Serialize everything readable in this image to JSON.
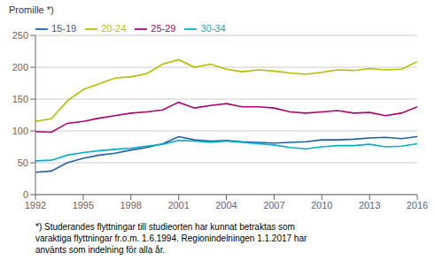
{
  "chart_data": {
    "type": "line",
    "ylabel": "Promille *)",
    "x": [
      1992,
      1993,
      1994,
      1995,
      1996,
      1997,
      1998,
      1999,
      2000,
      2001,
      2002,
      2003,
      2004,
      2005,
      2006,
      2007,
      2008,
      2009,
      2010,
      2011,
      2012,
      2013,
      2014,
      2015,
      2016
    ],
    "series": [
      {
        "name": "15-19",
        "color": "#1f5fa6",
        "values": [
          35,
          37,
          50,
          57,
          62,
          65,
          70,
          74,
          80,
          91,
          86,
          84,
          85,
          83,
          82,
          81,
          82,
          83,
          86,
          86,
          87,
          89,
          90,
          88,
          91
        ]
      },
      {
        "name": "20-24",
        "color": "#b5bf00",
        "values": [
          115,
          119,
          147,
          165,
          174,
          183,
          185,
          190,
          205,
          212,
          200,
          205,
          197,
          193,
          196,
          194,
          191,
          189,
          192,
          196,
          195,
          198,
          196,
          197,
          209
        ]
      },
      {
        "name": "25-29",
        "color": "#b0006e",
        "values": [
          99,
          98,
          112,
          115,
          120,
          124,
          128,
          130,
          133,
          145,
          136,
          140,
          143,
          138,
          138,
          136,
          130,
          128,
          130,
          132,
          128,
          129,
          124,
          128,
          138
        ]
      },
      {
        "name": "30-34",
        "color": "#00b0c8",
        "values": [
          53,
          54,
          62,
          66,
          69,
          71,
          73,
          76,
          79,
          85,
          84,
          82,
          84,
          82,
          80,
          78,
          74,
          72,
          75,
          77,
          77,
          79,
          75,
          76,
          80
        ]
      }
    ],
    "xlim": [
      1992,
      2016
    ],
    "xticks": [
      1992,
      1995,
      1998,
      2001,
      2004,
      2007,
      2010,
      2013,
      2016
    ],
    "ylim": [
      0,
      250
    ],
    "yticks": [
      0,
      50,
      100,
      150,
      200,
      250
    ],
    "grid": true,
    "legend": "upper left",
    "annotations": [
      "*) Studerandes flyttningar till studieorten har kunnat betraktas som",
      "varaktiga flyttningar fr.o.m. 1.6.1994. Regionindelningen 1.1.2017 har",
      "använts som indelning för alla år."
    ]
  }
}
